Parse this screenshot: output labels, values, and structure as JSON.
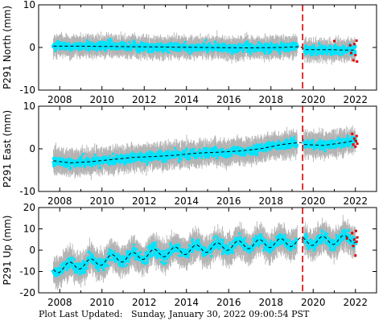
{
  "footer": {
    "label": "Plot Last Updated:",
    "timestamp": "Sunday, January 30, 2022 09:00:54 PST"
  },
  "colors": {
    "error_bars": "#b3b3b3",
    "daily_points": "#00e5ff",
    "model_line": "#000000",
    "event_line": "#dd0000",
    "recent_points": "#dd0000"
  },
  "chart_data": [
    {
      "type": "scatter",
      "ylabel": "P291 North (mm)",
      "xlim": [
        2007.0,
        2023.0
      ],
      "ylim": [
        -10,
        10
      ],
      "yticks": [
        -10,
        0,
        10
      ],
      "xticks": [
        2008,
        2010,
        2012,
        2014,
        2016,
        2018,
        2020,
        2022
      ],
      "event_line_x": 2019.5,
      "grid": false,
      "model_points": [
        [
          2007.7,
          0.3
        ],
        [
          2009,
          0.3
        ],
        [
          2011,
          0.2
        ],
        [
          2013,
          0.1
        ],
        [
          2015,
          0.0
        ],
        [
          2017,
          -0.1
        ],
        [
          2018.5,
          0.0
        ],
        [
          2019.4,
          0.2
        ],
        [
          2019.6,
          -0.5
        ],
        [
          2020.5,
          -0.5
        ],
        [
          2021.5,
          -0.6
        ],
        [
          2022.0,
          -0.6
        ]
      ],
      "point_scatter_mm": 1.0,
      "error_bar_mm": 2.2,
      "recent_points": [
        [
          2021.0,
          1.5
        ],
        [
          2021.75,
          0.5
        ],
        [
          2021.8,
          -1.3
        ],
        [
          2021.9,
          -3.0
        ],
        [
          2021.95,
          0.8
        ],
        [
          2022.0,
          -1.8
        ],
        [
          2022.05,
          1.6
        ],
        [
          2022.08,
          -3.3
        ]
      ]
    },
    {
      "type": "scatter",
      "ylabel": "P291 East (mm)",
      "xlim": [
        2007.0,
        2023.0
      ],
      "ylim": [
        -10,
        10
      ],
      "yticks": [
        -10,
        0,
        10
      ],
      "xticks": [
        2008,
        2010,
        2012,
        2014,
        2016,
        2018,
        2020,
        2022
      ],
      "event_line_x": 2019.5,
      "grid": false,
      "model_points": [
        [
          2007.7,
          -2.8
        ],
        [
          2008.5,
          -3.3
        ],
        [
          2009.5,
          -3.0
        ],
        [
          2010.5,
          -2.5
        ],
        [
          2011.5,
          -2.0
        ],
        [
          2012.5,
          -1.8
        ],
        [
          2013.5,
          -1.5
        ],
        [
          2014.5,
          -1.0
        ],
        [
          2015.5,
          -0.8
        ],
        [
          2016.5,
          -0.5
        ],
        [
          2017.5,
          0.0
        ],
        [
          2018.5,
          1.0
        ],
        [
          2019.4,
          1.5
        ],
        [
          2019.6,
          1.0
        ],
        [
          2020.5,
          0.8
        ],
        [
          2021.5,
          1.5
        ],
        [
          2022.0,
          2.0
        ]
      ],
      "point_scatter_mm": 1.0,
      "error_bar_mm": 2.6,
      "recent_points": [
        [
          2021.85,
          3.5
        ],
        [
          2021.9,
          1.0
        ],
        [
          2021.95,
          2.4
        ],
        [
          2022.0,
          0.5
        ],
        [
          2022.03,
          1.8
        ],
        [
          2022.06,
          3.0
        ],
        [
          2022.09,
          1.2
        ]
      ]
    },
    {
      "type": "scatter",
      "ylabel": "P291 Up (mm)",
      "xlim": [
        2007.0,
        2023.0
      ],
      "ylim": [
        -20,
        20
      ],
      "yticks": [
        -20,
        -10,
        0,
        10,
        20
      ],
      "xticks": [
        2008,
        2010,
        2012,
        2014,
        2016,
        2018,
        2020,
        2022
      ],
      "event_line_x": 2019.5,
      "grid": false,
      "model_points": [
        [
          2007.7,
          -9.0
        ],
        [
          2008.5,
          -7.5
        ],
        [
          2009.5,
          -6.0
        ],
        [
          2010.5,
          -4.0
        ],
        [
          2011.5,
          -3.0
        ],
        [
          2012.5,
          -1.5
        ],
        [
          2013.5,
          -0.5
        ],
        [
          2014.5,
          0.5
        ],
        [
          2015.5,
          1.5
        ],
        [
          2016.5,
          2.5
        ],
        [
          2017.5,
          3.0
        ],
        [
          2018.5,
          3.5
        ],
        [
          2019.5,
          4.0
        ],
        [
          2020.5,
          4.5
        ],
        [
          2021.5,
          5.0
        ],
        [
          2022.0,
          5.5
        ]
      ],
      "seasonal_amplitude_mm": 2.0,
      "point_scatter_mm": 2.5,
      "error_bar_mm": 6.0,
      "recent_points": [
        [
          2021.6,
          5.5
        ],
        [
          2021.85,
          8.0
        ],
        [
          2021.9,
          2.0
        ],
        [
          2021.95,
          5.0
        ],
        [
          2022.0,
          -2.5
        ],
        [
          2022.03,
          9.0
        ],
        [
          2022.06,
          4.0
        ],
        [
          2022.09,
          6.0
        ]
      ]
    }
  ]
}
